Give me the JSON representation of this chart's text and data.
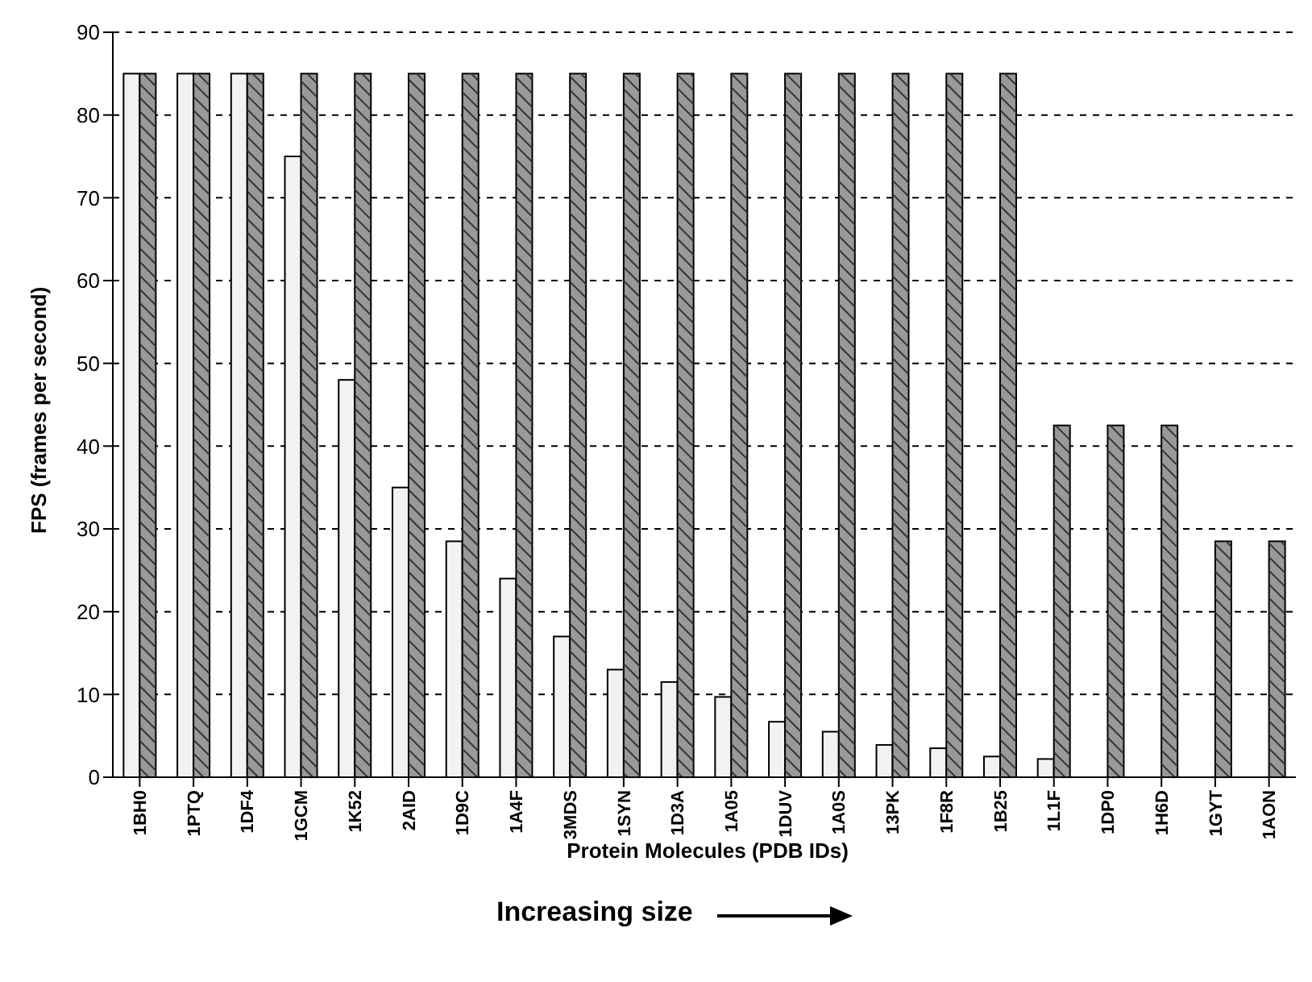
{
  "chart_data": {
    "type": "bar",
    "xlabel": "Protein Molecules (PDB IDs)",
    "ylabel": "FPS (frames per second)",
    "annotations": [
      "Increasing size"
    ],
    "categories": [
      "1BH0",
      "1PTQ",
      "1DF4",
      "1GCM",
      "1K52",
      "2AID",
      "1D9C",
      "1A4F",
      "3MDS",
      "1SYN",
      "1D3A",
      "1A05",
      "1DUV",
      "1A0S",
      "13PK",
      "1F8R",
      "1B25",
      "1L1F",
      "1DP0",
      "1H6D",
      "1GYT",
      "1AON"
    ],
    "series": [
      {
        "color": "#f2f2f2",
        "values": [
          85,
          85,
          85,
          75,
          48,
          35,
          28.5,
          24,
          17,
          13,
          11.5,
          9.7,
          6.7,
          5.5,
          3.9,
          3.5,
          2.5,
          2.2,
          null,
          null,
          null,
          null
        ]
      },
      {
        "color": "#999999",
        "values": [
          85,
          85,
          85,
          85,
          85,
          85,
          85,
          85,
          85,
          85,
          85,
          85,
          85,
          85,
          85,
          85,
          85,
          42.5,
          42.5,
          42.5,
          28.5,
          28.5
        ]
      }
    ],
    "ylim": [
      0,
      90
    ],
    "yticks": [
      0,
      10,
      20,
      30,
      40,
      50,
      60,
      70,
      80,
      90
    ],
    "grid": "y",
    "legend": false
  }
}
